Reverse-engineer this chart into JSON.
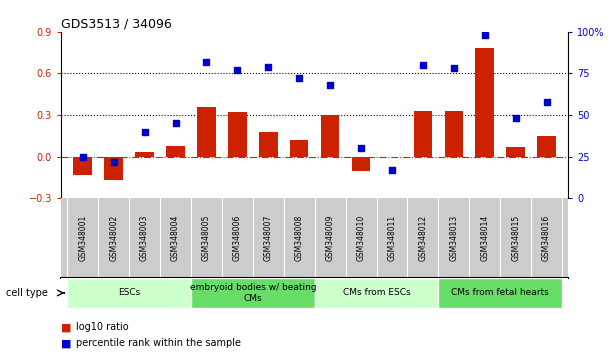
{
  "title": "GDS3513 / 34096",
  "samples": [
    "GSM348001",
    "GSM348002",
    "GSM348003",
    "GSM348004",
    "GSM348005",
    "GSM348006",
    "GSM348007",
    "GSM348008",
    "GSM348009",
    "GSM348010",
    "GSM348011",
    "GSM348012",
    "GSM348013",
    "GSM348014",
    "GSM348015",
    "GSM348016"
  ],
  "log10_ratio": [
    -0.13,
    -0.17,
    0.03,
    0.08,
    0.36,
    0.32,
    0.18,
    0.12,
    0.3,
    -0.1,
    0.0,
    0.33,
    0.33,
    0.78,
    0.07,
    0.15
  ],
  "percentile_rank": [
    25,
    22,
    40,
    45,
    82,
    77,
    79,
    72,
    68,
    30,
    17,
    80,
    78,
    98,
    48,
    58
  ],
  "ylim_left": [
    -0.3,
    0.9
  ],
  "ylim_right": [
    0,
    100
  ],
  "yticks_left": [
    -0.3,
    0.0,
    0.3,
    0.6,
    0.9
  ],
  "yticks_right": [
    0,
    25,
    50,
    75,
    100
  ],
  "ytick_labels_right": [
    "0",
    "25",
    "50",
    "75",
    "100%"
  ],
  "hlines": [
    0.3,
    0.6
  ],
  "bar_color": "#cc2200",
  "scatter_color": "#0000cc",
  "zero_line_color": "#cc2200",
  "cell_groups": [
    {
      "label": "ESCs",
      "start": 0,
      "end": 3,
      "color": "#ccffcc"
    },
    {
      "label": "embryoid bodies w/ beating\nCMs",
      "start": 4,
      "end": 7,
      "color": "#66dd66"
    },
    {
      "label": "CMs from ESCs",
      "start": 8,
      "end": 11,
      "color": "#ccffcc"
    },
    {
      "label": "CMs from fetal hearts",
      "start": 12,
      "end": 15,
      "color": "#66dd66"
    }
  ],
  "legend_bar_label": "log10 ratio",
  "legend_scatter_label": "percentile rank within the sample",
  "cell_type_label": "cell type",
  "tick_label_color_left": "#cc2200",
  "tick_label_color_right": "#0000cc",
  "background_color": "#ffffff",
  "label_bg_color": "#cccccc",
  "label_sep_color": "#ffffff",
  "spine_color": "#000000"
}
